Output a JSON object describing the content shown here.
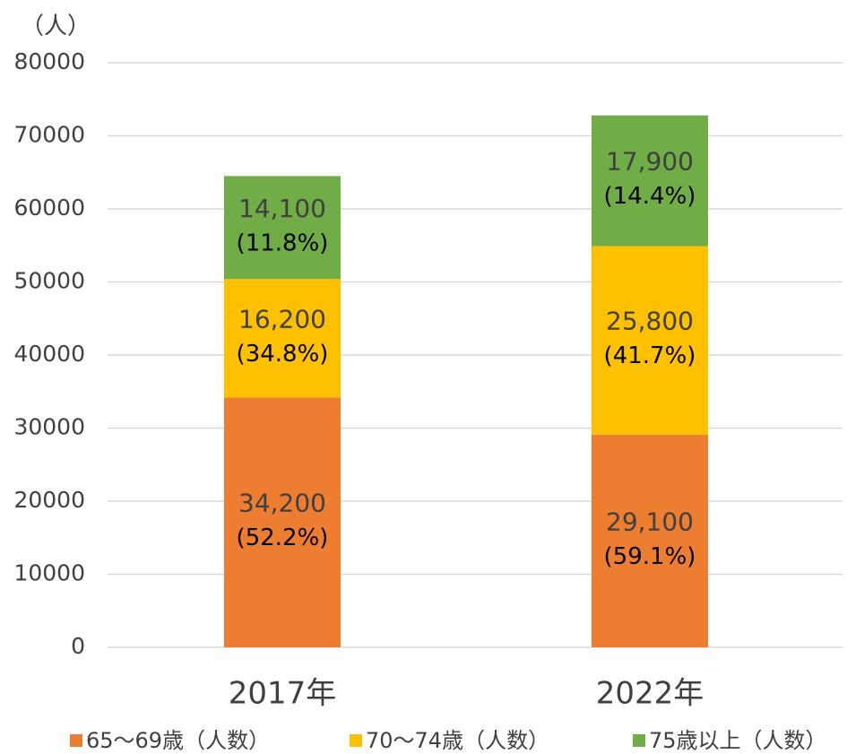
{
  "chart_data": {
    "type": "stacked_bar",
    "y_axis_label": "（人）",
    "categories": [
      "2017年",
      "2022年"
    ],
    "series": [
      {
        "name": "65～69歳（人数）",
        "color": "#ed7d31",
        "values": [
          34200,
          29100
        ],
        "value_labels": [
          "34,200",
          "29,100"
        ],
        "percent_labels": [
          "(52.2%)",
          "(59.1%)"
        ]
      },
      {
        "name": "70～74歳（人数）",
        "color": "#ffc000",
        "values": [
          16200,
          25800
        ],
        "value_labels": [
          "16,200",
          "25,800"
        ],
        "percent_labels": [
          "(34.8%)",
          "(41.7%)"
        ]
      },
      {
        "name": "75歳以上（人数）",
        "color": "#70ad47",
        "values": [
          14100,
          17900
        ],
        "value_labels": [
          "14,100",
          "17,900"
        ],
        "percent_labels": [
          "(11.8%)",
          "(14.4%)"
        ]
      }
    ],
    "ylim": [
      0,
      80000
    ],
    "yticks": [
      0,
      10000,
      20000,
      30000,
      40000,
      50000,
      60000,
      70000,
      80000
    ],
    "grid": true,
    "legend": "bottom"
  }
}
